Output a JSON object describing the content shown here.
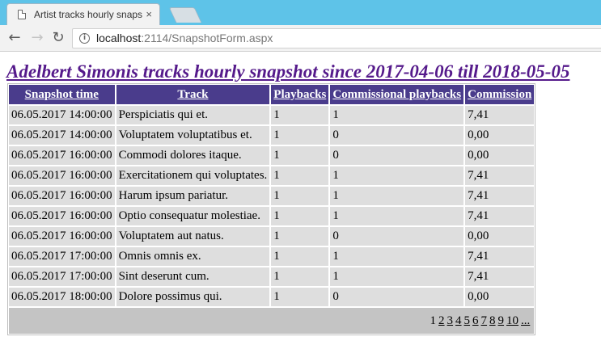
{
  "browser": {
    "tab_title": "Artist tracks hourly snaps",
    "close_glyph": "×",
    "url_host": "localhost",
    "url_rest": ":2114/SnapshotForm.aspx"
  },
  "page": {
    "title": "Adelbert Simonis tracks hourly snapshot since 2017-04-06 till 2018-05-05"
  },
  "table": {
    "headers": [
      "Snapshot time",
      "Track",
      "Playbacks",
      "Commissional playbacks",
      "Commission"
    ],
    "rows": [
      [
        "06.05.2017 14:00:00",
        "Perspiciatis qui et.",
        "1",
        "1",
        "7,41"
      ],
      [
        "06.05.2017 14:00:00",
        "Voluptatem voluptatibus et.",
        "1",
        "0",
        "0,00"
      ],
      [
        "06.05.2017 16:00:00",
        "Commodi dolores itaque.",
        "1",
        "0",
        "0,00"
      ],
      [
        "06.05.2017 16:00:00",
        "Exercitationem qui voluptates.",
        "1",
        "1",
        "7,41"
      ],
      [
        "06.05.2017 16:00:00",
        "Harum ipsum pariatur.",
        "1",
        "1",
        "7,41"
      ],
      [
        "06.05.2017 16:00:00",
        "Optio consequatur molestiae.",
        "1",
        "1",
        "7,41"
      ],
      [
        "06.05.2017 16:00:00",
        "Voluptatem aut natus.",
        "1",
        "0",
        "0,00"
      ],
      [
        "06.05.2017 17:00:00",
        "Omnis omnis ex.",
        "1",
        "1",
        "7,41"
      ],
      [
        "06.05.2017 17:00:00",
        "Sint deserunt cum.",
        "1",
        "1",
        "7,41"
      ],
      [
        "06.05.2017 18:00:00",
        "Dolore possimus qui.",
        "1",
        "0",
        "0,00"
      ]
    ],
    "pager": {
      "current": "1",
      "pages": [
        "2",
        "3",
        "4",
        "5",
        "6",
        "7",
        "8",
        "9",
        "10",
        "..."
      ]
    }
  },
  "colors": {
    "header_bg": "#4a3c8c",
    "row_bg": "#dedede",
    "pager_bg": "#c4c4c4",
    "title_link": "#551a8b",
    "tabstrip_bg": "#5ec3e8"
  }
}
